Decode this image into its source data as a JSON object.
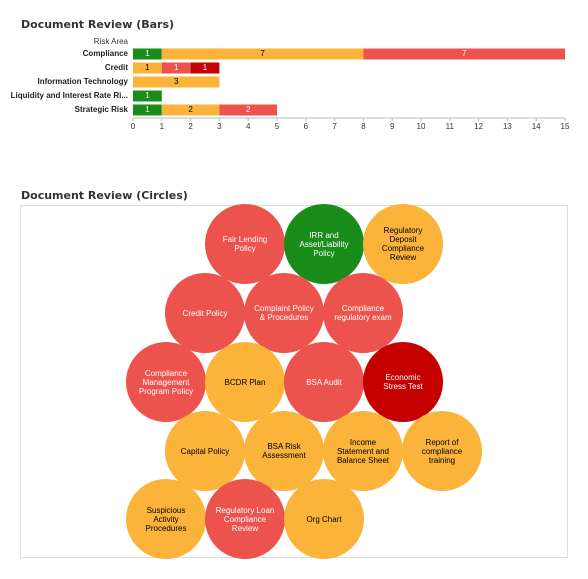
{
  "chart_data": {
    "type": "stacked-bar-horizontal",
    "title": "Document Review (Bars)",
    "category_axis_label": "Risk Area",
    "categories": [
      "Compliance",
      "Credit",
      "Information Technology",
      "Liquidity and Interest Rate Ri...",
      "Strategic Risk"
    ],
    "series": [
      {
        "color": "#1a8c1a",
        "values": [
          1,
          null,
          null,
          1,
          1
        ]
      },
      {
        "color": "#fbb33a",
        "values": [
          7,
          1,
          3,
          null,
          2
        ]
      },
      {
        "color": "#ec534c",
        "values": [
          7,
          1,
          null,
          null,
          2
        ]
      },
      {
        "color": "#c40000",
        "values": [
          null,
          1,
          null,
          null,
          null
        ]
      }
    ],
    "xlim": [
      0,
      15
    ],
    "xticks": [
      0,
      1,
      2,
      3,
      4,
      5,
      6,
      7,
      8,
      9,
      10,
      11,
      12,
      13,
      14,
      15
    ]
  },
  "circles_panel": {
    "title": "Document Review (Circles)",
    "items": [
      {
        "label": "Fair Lending Policy",
        "color": "#ec534c"
      },
      {
        "label": "IRR and Asset/Liability Policy",
        "color": "#1a8c1a"
      },
      {
        "label": "Regulatory Deposit Compliance Review",
        "color": "#fbb33a"
      },
      {
        "label": "Credit Policy",
        "color": "#ec534c"
      },
      {
        "label": "Complaint Policy & Procedures",
        "color": "#ec534c"
      },
      {
        "label": "Compliance regulatory exam",
        "color": "#ec534c"
      },
      {
        "label": "Compliance Management Program Policy",
        "color": "#ec534c"
      },
      {
        "label": "BCDR Plan",
        "color": "#fbb33a"
      },
      {
        "label": "BSA Audit",
        "color": "#ec534c"
      },
      {
        "label": "Economic Stress Test",
        "color": "#c40000"
      },
      {
        "label": "Capital Policy",
        "color": "#fbb33a"
      },
      {
        "label": "BSA Risk Assessment",
        "color": "#fbb33a"
      },
      {
        "label": "Income Statement and Balance Sheet",
        "color": "#fbb33a"
      },
      {
        "label": "Report of compliance training",
        "color": "#fbb33a"
      },
      {
        "label": "Suspicious Activity Procedures",
        "color": "#fbb33a"
      },
      {
        "label": "Regulatory Loan Compliance Review",
        "color": "#ec534c"
      },
      {
        "label": "Org Chart",
        "color": "#fbb33a"
      }
    ]
  }
}
